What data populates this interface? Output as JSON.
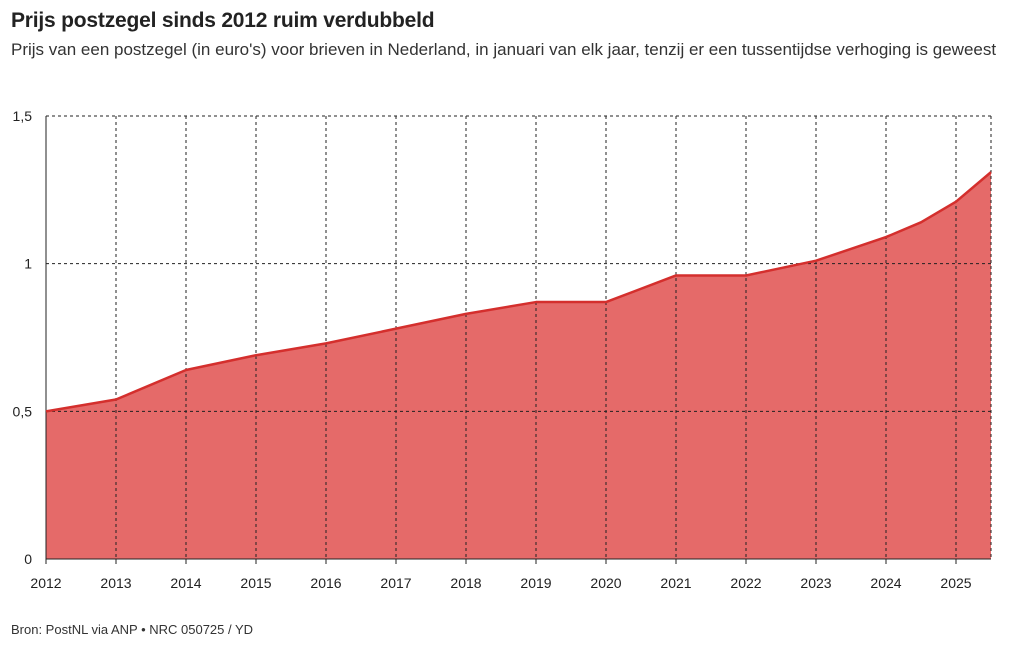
{
  "chart_data": {
    "type": "area",
    "title": "Prijs postzegel sinds 2012 ruim verdubbeld",
    "subtitle": "Prijs van een postzegel (in euro's) voor brieven in Nederland, in januari van elk jaar, tenzij er een tussentijdse verhoging is geweest",
    "source": "Bron: PostNL via ANP • NRC 050725 / YD",
    "xlabel": "",
    "ylabel": "",
    "x_ticks": [
      "2012",
      "2013",
      "2014",
      "2015",
      "2016",
      "2017",
      "2018",
      "2019",
      "2020",
      "2021",
      "2022",
      "2023",
      "2024",
      "2025"
    ],
    "y_ticks": [
      {
        "value": 0,
        "label": "0"
      },
      {
        "value": 0.5,
        "label": "0,5"
      },
      {
        "value": 1,
        "label": "1"
      },
      {
        "value": 1.5,
        "label": "1,5"
      }
    ],
    "xlim": [
      2012,
      2025.5
    ],
    "ylim": [
      0,
      1.5
    ],
    "grid": true,
    "series": [
      {
        "x": [
          2012,
          2013,
          2014,
          2015,
          2016,
          2017,
          2018,
          2019,
          2020,
          2021,
          2022,
          2023,
          2024,
          2024.5,
          2025,
          2025.5
        ],
        "values": [
          0.5,
          0.54,
          0.64,
          0.69,
          0.73,
          0.78,
          0.83,
          0.87,
          0.87,
          0.96,
          0.96,
          1.01,
          1.09,
          1.14,
          1.21,
          1.31
        ]
      }
    ],
    "colors": {
      "fill": "#e56a69",
      "line": "#d42f2d",
      "grid": "#222222"
    }
  }
}
